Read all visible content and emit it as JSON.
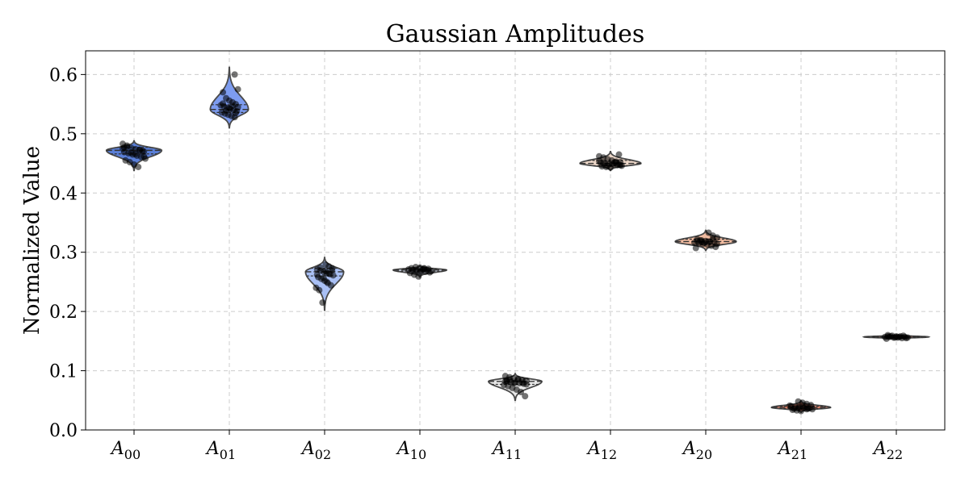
{
  "chart_data": {
    "type": "violin",
    "title": "Gaussian Amplitudes",
    "xlabel": "",
    "ylabel": "Normalized Value",
    "ylim": [
      0.0,
      0.64
    ],
    "yticks": [
      "0.0",
      "0.1",
      "0.2",
      "0.3",
      "0.4",
      "0.5",
      "0.6"
    ],
    "grid": true,
    "categories": [
      {
        "base": "A",
        "sub": "00"
      },
      {
        "base": "A",
        "sub": "01"
      },
      {
        "base": "A",
        "sub": "02"
      },
      {
        "base": "A",
        "sub": "10"
      },
      {
        "base": "A",
        "sub": "11"
      },
      {
        "base": "A",
        "sub": "12"
      },
      {
        "base": "A",
        "sub": "20"
      },
      {
        "base": "A",
        "sub": "21"
      },
      {
        "base": "A",
        "sub": "22"
      }
    ],
    "series": [
      {
        "color": "#5a7fd8",
        "center": 0.472,
        "q1": 0.466,
        "q3": 0.477,
        "min": 0.438,
        "max": 0.488,
        "halfwidth": 0.58,
        "points": [
          0.483,
          0.478,
          0.476,
          0.474,
          0.472,
          0.47,
          0.469,
          0.467,
          0.465,
          0.463,
          0.461,
          0.458,
          0.455,
          0.452,
          0.448,
          0.444,
          0.471,
          0.475,
          0.48,
          0.468,
          0.466,
          0.473,
          0.462,
          0.477
        ]
      },
      {
        "color": "#7d9cf0",
        "center": 0.541,
        "q1": 0.536,
        "q3": 0.549,
        "min": 0.51,
        "max": 0.612,
        "halfwidth": 0.4,
        "points": [
          0.6,
          0.575,
          0.57,
          0.56,
          0.556,
          0.553,
          0.55,
          0.548,
          0.546,
          0.544,
          0.542,
          0.54,
          0.538,
          0.536,
          0.534,
          0.532,
          0.53,
          0.528,
          0.545,
          0.551,
          0.539,
          0.543,
          0.547,
          0.535
        ]
      },
      {
        "color": "#a9c0f5",
        "center": 0.267,
        "q1": 0.26,
        "q3": 0.273,
        "min": 0.202,
        "max": 0.291,
        "halfwidth": 0.4,
        "points": [
          0.279,
          0.276,
          0.273,
          0.271,
          0.269,
          0.267,
          0.265,
          0.263,
          0.261,
          0.258,
          0.255,
          0.252,
          0.248,
          0.244,
          0.24,
          0.236,
          0.215,
          0.268,
          0.264,
          0.27,
          0.262,
          0.274,
          0.257,
          0.25
        ]
      },
      {
        "color": "#d5dcec",
        "center": 0.27,
        "q1": 0.268,
        "q3": 0.272,
        "min": 0.258,
        "max": 0.277,
        "halfwidth": 0.56,
        "points": [
          0.275,
          0.274,
          0.273,
          0.272,
          0.271,
          0.27,
          0.269,
          0.268,
          0.267,
          0.266,
          0.265,
          0.262,
          0.259,
          0.271,
          0.27,
          0.268,
          0.273,
          0.269,
          0.266,
          0.272
        ]
      },
      {
        "color": "#e8e8e8",
        "center": 0.082,
        "q1": 0.077,
        "q3": 0.086,
        "min": 0.05,
        "max": 0.095,
        "halfwidth": 0.56,
        "points": [
          0.091,
          0.089,
          0.087,
          0.085,
          0.084,
          0.083,
          0.082,
          0.081,
          0.08,
          0.079,
          0.078,
          0.076,
          0.074,
          0.071,
          0.068,
          0.064,
          0.057,
          0.082,
          0.084,
          0.079,
          0.086,
          0.08,
          0.077,
          0.083
        ]
      },
      {
        "color": "#eed8c9",
        "center": 0.45,
        "q1": 0.446,
        "q3": 0.455,
        "min": 0.438,
        "max": 0.47,
        "halfwidth": 0.64,
        "points": [
          0.465,
          0.462,
          0.46,
          0.457,
          0.455,
          0.453,
          0.452,
          0.451,
          0.45,
          0.449,
          0.448,
          0.447,
          0.446,
          0.445,
          0.444,
          0.443,
          0.452,
          0.448,
          0.454,
          0.45,
          0.446,
          0.449,
          0.451,
          0.447
        ]
      },
      {
        "color": "#f2bca1",
        "center": 0.318,
        "q1": 0.313,
        "q3": 0.322,
        "min": 0.303,
        "max": 0.337,
        "halfwidth": 0.64,
        "points": [
          0.333,
          0.328,
          0.325,
          0.322,
          0.32,
          0.319,
          0.318,
          0.317,
          0.316,
          0.315,
          0.314,
          0.313,
          0.311,
          0.309,
          0.307,
          0.32,
          0.316,
          0.318,
          0.322,
          0.314,
          0.319,
          0.317
        ]
      },
      {
        "color": "#e8876e",
        "center": 0.038,
        "q1": 0.036,
        "q3": 0.04,
        "min": 0.03,
        "max": 0.049,
        "halfwidth": 0.62,
        "points": [
          0.048,
          0.046,
          0.044,
          0.042,
          0.04,
          0.039,
          0.038,
          0.037,
          0.036,
          0.035,
          0.034,
          0.033,
          0.032,
          0.039,
          0.037,
          0.041,
          0.036,
          0.038,
          0.04,
          0.035
        ]
      },
      {
        "color": "#c46a55",
        "center": 0.157,
        "q1": 0.156,
        "q3": 0.158,
        "min": 0.153,
        "max": 0.161,
        "halfwidth": 0.68,
        "points": [
          0.16,
          0.159,
          0.158,
          0.158,
          0.157,
          0.157,
          0.157,
          0.156,
          0.156,
          0.155,
          0.155,
          0.154,
          0.158,
          0.156,
          0.157,
          0.159,
          0.156,
          0.158
        ]
      }
    ]
  }
}
